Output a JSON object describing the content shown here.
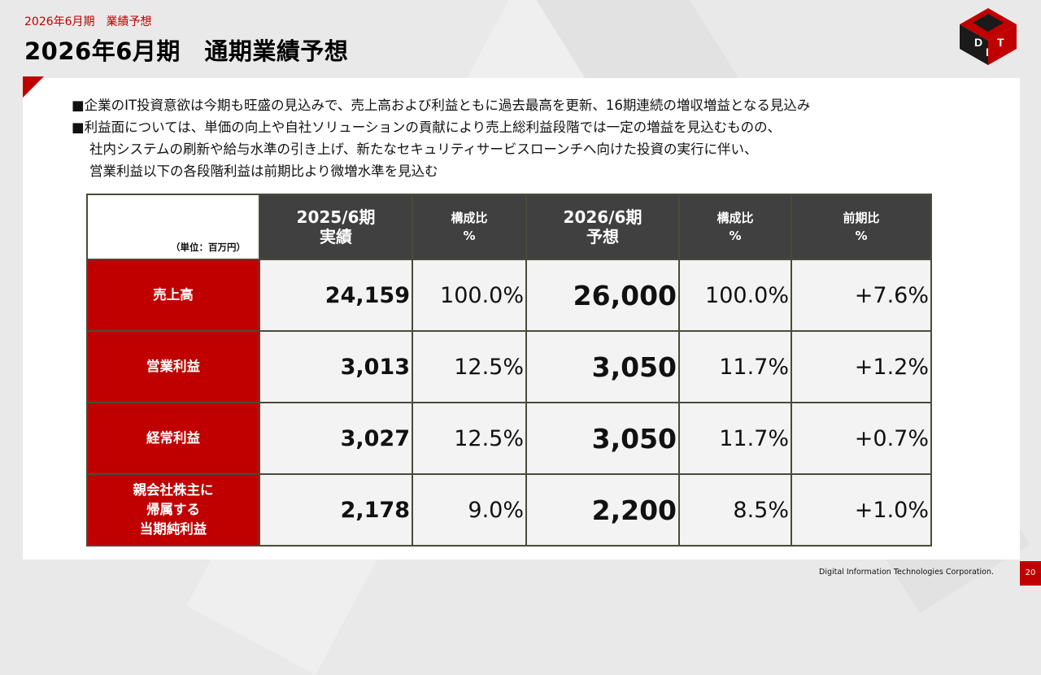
{
  "header": {
    "subtitle": "2026年6月期　業績予想",
    "title": "2026年6月期　通期業績予想"
  },
  "logo": {
    "letters": [
      "D",
      "I",
      "T"
    ],
    "accent_color": "#c00000"
  },
  "bullets": [
    "■企業のIT投資意欲は今期も旺盛の見込みで、売上高および利益ともに過去最高を更新、16期連続の増収増益となる見込み",
    "■利益面については、単価の向上や自社ソリューションの貢献により売上総利益段階では一定の増益を見込むものの、",
    "社内システムの刷新や給与水準の引き上げ、新たなセキュリティサービスローンチへ向けた投資の実行に伴い、",
    "営業利益以下の各段階利益は前期比より微増水準を見込む"
  ],
  "table": {
    "unit": "（単位：百万円）",
    "headers": {
      "fy2025_line1": "2025/6期",
      "fy2025_line2": "実績",
      "ratio_a_line1": "構成比",
      "ratio_a_line2": "%",
      "fy2026_line1": "2026/6期",
      "fy2026_line2": "予想",
      "ratio_b_line1": "構成比",
      "ratio_b_line2": "%",
      "yoy_line1": "前期比",
      "yoy_line2": "%"
    },
    "rows": [
      {
        "label_lines": [
          "売上高"
        ],
        "fy2025": "24,159",
        "ratio2025": "100.0%",
        "fy2026": "26,000",
        "ratio2026": "100.0%",
        "yoy": "+7.6%"
      },
      {
        "label_lines": [
          "営業利益"
        ],
        "fy2025": "3,013",
        "ratio2025": "12.5%",
        "fy2026": "3,050",
        "ratio2026": "11.7%",
        "yoy": "+1.2%"
      },
      {
        "label_lines": [
          "経常利益"
        ],
        "fy2025": "3,027",
        "ratio2025": "12.5%",
        "fy2026": "3,050",
        "ratio2026": "11.7%",
        "yoy": "+0.7%"
      },
      {
        "label_lines": [
          "親会社株主に",
          "帰属する",
          "当期純利益"
        ],
        "fy2025": "2,178",
        "ratio2025": "9.0%",
        "fy2026": "2,200",
        "ratio2026": "8.5%",
        "yoy": "+1.0%"
      }
    ]
  },
  "footer": {
    "company": "Digital Information Technologies Corporation.",
    "page_number": "20"
  },
  "colors": {
    "brand_red": "#c00000",
    "header_gray": "#404040",
    "cell_bg": "#f3f3f3"
  }
}
